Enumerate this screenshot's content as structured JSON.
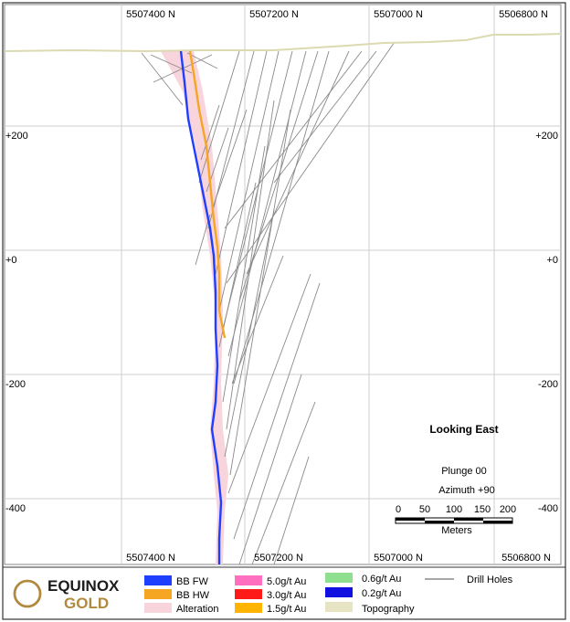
{
  "northings_top": [
    "5507400 N",
    "5507200 N",
    "5507000 N",
    "5506800 N"
  ],
  "northings_bottom": [
    "5507400 N",
    "5507200 N",
    "5507000 N",
    "5506800 N"
  ],
  "elevations_left": [
    "+200",
    "+0",
    "-200",
    "-400"
  ],
  "elevations_right": [
    "+200",
    "+0",
    "-200",
    "-400"
  ],
  "view": {
    "title": "Looking East",
    "plunge": "Plunge 00",
    "azimuth": "Azimuth +90"
  },
  "scale_bar": {
    "ticks": [
      "0",
      "50",
      "100",
      "150",
      "200"
    ],
    "unit": "Meters"
  },
  "legend": {
    "bb_fw": "BB FW",
    "bb_hw": "BB HW",
    "alteration": "Alteration",
    "g50": "5.0g/t Au",
    "g30": "3.0g/t Au",
    "g15": "1.5g/t Au",
    "g06": "0.6g/t Au",
    "g02": "0.2g/t Au",
    "topography": "Topography",
    "drill_holes": "Drill Holes"
  },
  "brand": {
    "name_line1": "EQUINOX",
    "name_line2": "GOLD"
  },
  "colors": {
    "bb_fw": "#1f3fff",
    "bb_hw": "#f5a623",
    "alteration": "#f8d4dc",
    "g50": "#ff6fbf",
    "g30": "#ff1a1a",
    "g15": "#ffb400",
    "g06": "#8ee08e",
    "g02": "#1010e0",
    "topography": "#e6e4c2",
    "drill_holes": "#8a8a8a",
    "brand_gold": "#b08a3e"
  }
}
